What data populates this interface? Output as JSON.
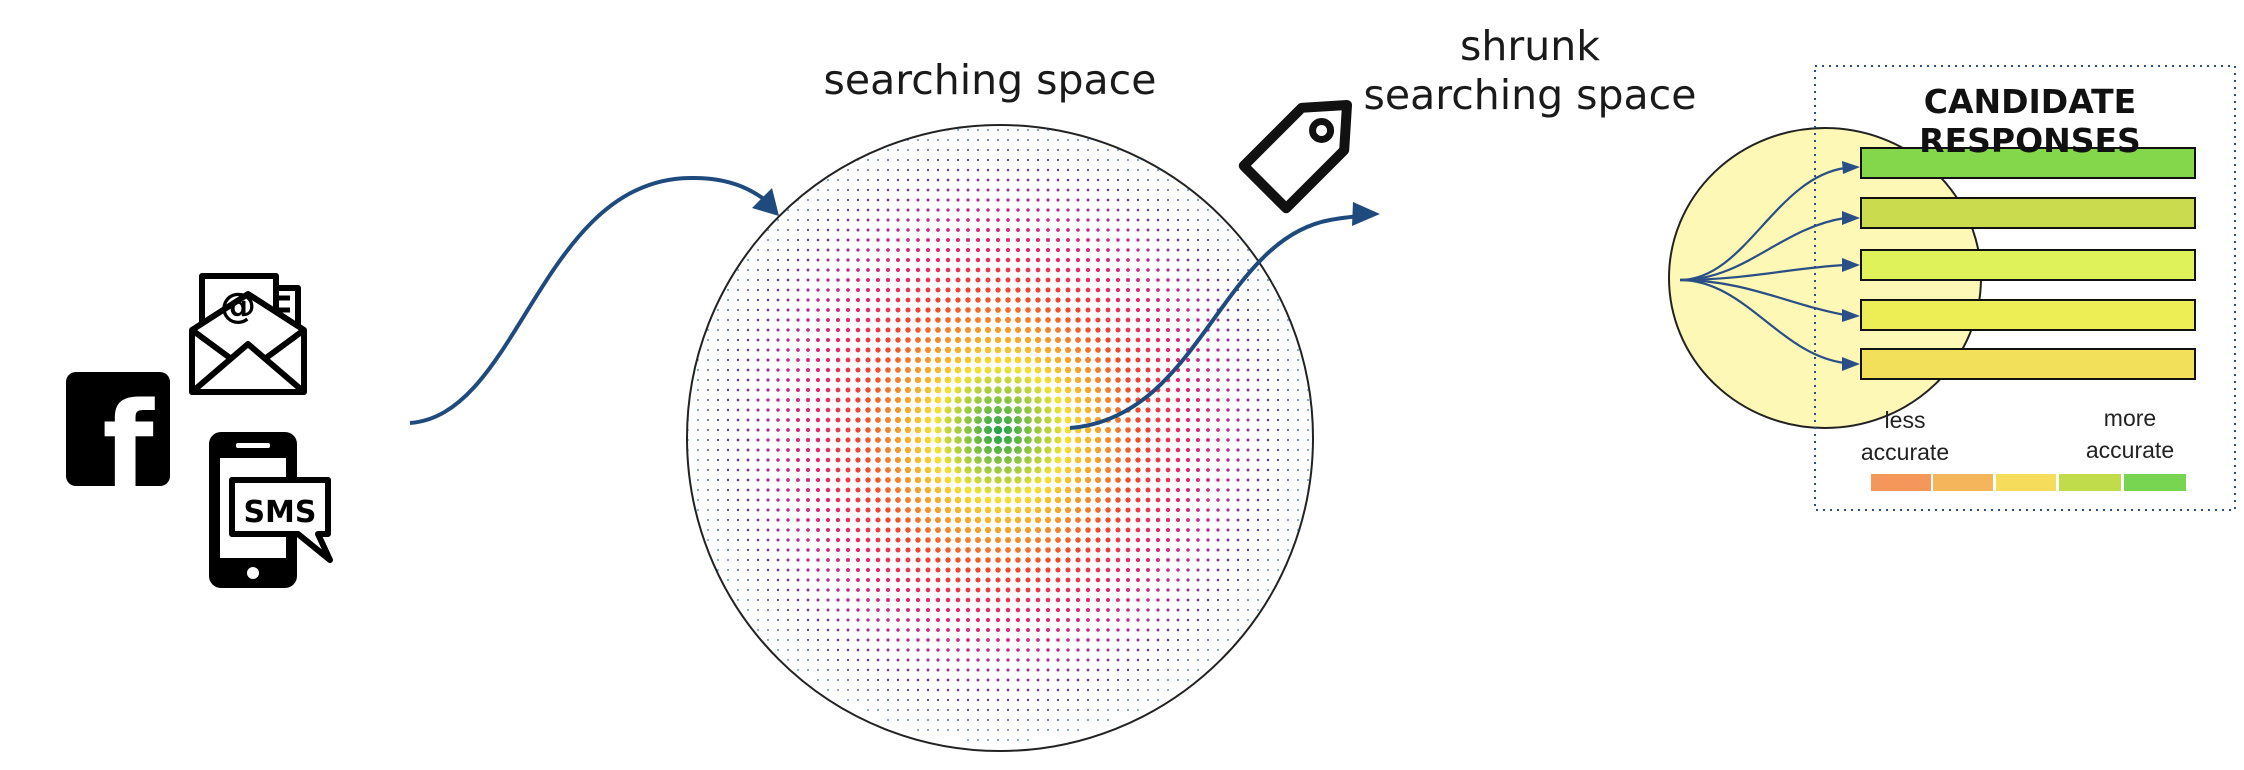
{
  "labels": {
    "searching_space": "searching space",
    "shrunk_line1": "shrunk",
    "shrunk_line2": "searching space",
    "candidate_title": "CANDIDATE RESPONSES",
    "less_line1": "less",
    "less_line2": "accurate",
    "more_line1": "more",
    "more_line2": "accurate",
    "sms": "SMS",
    "at_sign": "@",
    "fb_letter": "f"
  },
  "icons": {
    "facebook": "facebook-icon",
    "email": "email-icon",
    "sms_phone": "sms-phone-icon",
    "tag": "tag-icon"
  },
  "colors": {
    "arrow": "#1f4a7e",
    "shrunk_fill": "#fdf8b5",
    "panel_border": "#2a4e86",
    "dot_palette": [
      "#1ba24a",
      "#8bc53f",
      "#f2e336",
      "#f5a22b",
      "#ed4a2e",
      "#e02a6e",
      "#b22b94",
      "#5b3a9c",
      "#2d5fb5",
      "#3db5d4"
    ]
  },
  "candidate_bars": [
    {
      "color": "#84d64b"
    },
    {
      "color": "#cadb4d"
    },
    {
      "color": "#e0f25a"
    },
    {
      "color": "#eded55"
    },
    {
      "color": "#f2e05b"
    }
  ],
  "accuracy_scale": [
    "#f5965b",
    "#f5b65b",
    "#f5dd5b",
    "#c0dc4a",
    "#77d552"
  ]
}
